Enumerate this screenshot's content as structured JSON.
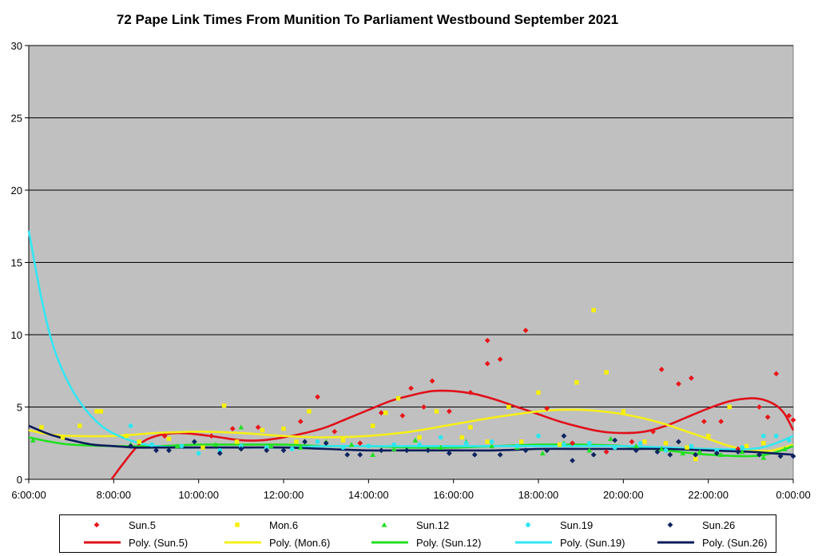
{
  "chart_data": {
    "type": "scatter",
    "title": "72 Pape Link Times From Munition To Parliament Westbound September 2021",
    "xlabel": "",
    "ylabel": "",
    "x_ticks": [
      "6:00:00",
      "8:00:00",
      "10:00:00",
      "12:00:00",
      "14:00:00",
      "16:00:00",
      "18:00:00",
      "20:00:00",
      "22:00:00",
      "0:00:00"
    ],
    "y_ticks": [
      "0",
      "5",
      "10",
      "15",
      "20",
      "25",
      "30"
    ],
    "xlim": [
      6,
      24
    ],
    "ylim": [
      0,
      30
    ],
    "grid": "horizontal",
    "legend": "bottom",
    "plot_background": "#c0c0c0",
    "series": [
      {
        "name": "Sun.5",
        "marker": "diamond",
        "color": "#e8161b",
        "x": [
          9.2,
          10.3,
          10.8,
          11.4,
          12.4,
          12.8,
          13.2,
          13.8,
          14.3,
          14.8,
          15.0,
          15.3,
          15.5,
          15.9,
          16.4,
          16.8,
          16.8,
          17.1,
          17.7,
          18.2,
          18.8,
          19.6,
          20.2,
          20.7,
          20.9,
          21.3,
          21.6,
          21.9,
          22.3,
          22.7,
          23.2,
          23.4,
          23.6,
          23.9,
          24.0
        ],
        "y": [
          3.0,
          3.0,
          3.5,
          3.6,
          4.0,
          5.7,
          3.3,
          2.5,
          4.6,
          4.4,
          6.3,
          5.0,
          6.8,
          4.7,
          6.0,
          9.6,
          8.0,
          8.3,
          10.3,
          4.9,
          2.5,
          1.9,
          2.6,
          3.3,
          7.6,
          6.6,
          7.0,
          4.0,
          4.0,
          2.1,
          5.0,
          4.3,
          7.3,
          4.4,
          4.1
        ]
      },
      {
        "name": "Mon.6",
        "marker": "square",
        "color": "#f6f000",
        "x": [
          6.3,
          6.8,
          7.2,
          7.6,
          7.7,
          8.3,
          8.6,
          9.3,
          10.1,
          10.6,
          10.9,
          11.5,
          12.0,
          12.3,
          12.6,
          13.4,
          14.1,
          14.4,
          14.7,
          15.2,
          15.6,
          16.2,
          16.4,
          16.8,
          17.3,
          17.6,
          18.0,
          18.5,
          18.9,
          19.3,
          19.6,
          20.0,
          20.5,
          21.0,
          21.5,
          21.7,
          22.0,
          22.5,
          22.9,
          23.3
        ],
        "y": [
          3.6,
          2.9,
          3.7,
          4.7,
          4.7,
          3.0,
          2.6,
          2.8,
          2.2,
          5.1,
          2.6,
          3.4,
          3.5,
          2.6,
          4.7,
          2.7,
          3.7,
          4.6,
          5.6,
          2.9,
          4.7,
          2.9,
          3.6,
          2.6,
          5.0,
          2.6,
          6.0,
          2.4,
          6.7,
          11.7,
          7.4,
          4.7,
          2.6,
          2.5,
          2.2,
          1.4,
          3.0,
          5.0,
          2.3,
          2.5
        ]
      },
      {
        "name": "Sun.12",
        "marker": "triangle",
        "color": "#22e022",
        "x": [
          6.1,
          8.4,
          9.5,
          10.4,
          11.0,
          11.7,
          12.4,
          13.0,
          13.6,
          14.1,
          14.6,
          15.1,
          15.7,
          16.3,
          16.9,
          17.5,
          18.1,
          18.6,
          19.2,
          19.7,
          20.3,
          20.9,
          21.4,
          21.8,
          22.3,
          22.8,
          23.3,
          23.8
        ],
        "y": [
          2.7,
          2.4,
          2.3,
          2.4,
          3.6,
          2.3,
          2.2,
          2.6,
          2.4,
          1.7,
          2.1,
          2.7,
          2.2,
          2.6,
          2.3,
          2.2,
          1.8,
          2.5,
          2.0,
          2.8,
          2.3,
          2.1,
          1.8,
          1.9,
          1.7,
          1.9,
          1.5,
          2.1
        ]
      },
      {
        "name": "Sun.19",
        "marker": "circle",
        "color": "#2ee6ee",
        "x": [
          8.4,
          8.9,
          9.6,
          10.0,
          10.5,
          11.0,
          11.6,
          12.2,
          12.8,
          13.4,
          14.0,
          14.6,
          15.2,
          15.7,
          16.3,
          16.9,
          17.5,
          18.0,
          18.6,
          19.2,
          19.8,
          20.4,
          21.0,
          21.6,
          22.2,
          22.8,
          23.3,
          23.6,
          23.9
        ],
        "y": [
          3.7,
          2.4,
          2.3,
          1.8,
          2.0,
          2.3,
          2.2,
          2.1,
          2.6,
          2.2,
          2.3,
          2.4,
          2.4,
          2.9,
          2.5,
          2.6,
          2.3,
          3.0,
          2.4,
          2.5,
          2.2,
          2.5,
          2.0,
          2.3,
          2.0,
          2.2,
          3.0,
          3.0,
          2.7
        ]
      },
      {
        "name": "Sun.26",
        "marker": "diamond",
        "color": "#0e2460",
        "x": [
          8.4,
          9.0,
          9.3,
          9.9,
          10.5,
          11.0,
          11.6,
          12.0,
          12.5,
          13.0,
          13.5,
          13.8,
          14.3,
          14.9,
          15.4,
          15.9,
          16.5,
          17.1,
          17.7,
          18.2,
          18.6,
          18.8,
          19.3,
          19.8,
          20.3,
          20.8,
          21.1,
          21.3,
          21.7,
          22.2,
          22.7,
          23.2,
          23.7,
          24.0
        ],
        "y": [
          2.3,
          2.0,
          2.0,
          2.6,
          1.8,
          2.1,
          2.0,
          2.0,
          2.6,
          2.5,
          1.7,
          1.7,
          2.0,
          2.0,
          2.0,
          1.8,
          1.7,
          1.7,
          2.0,
          2.0,
          3.0,
          1.3,
          1.7,
          2.7,
          2.0,
          1.9,
          1.7,
          2.6,
          1.7,
          1.8,
          1.9,
          1.7,
          1.6,
          1.6
        ]
      }
    ],
    "trendlines": [
      {
        "name": "Poly. (Sun.5)",
        "color": "#e0101a",
        "x": [
          7.95,
          8.2,
          8.6,
          9.0,
          9.5,
          10.0,
          10.5,
          11.0,
          11.5,
          12.0,
          12.5,
          13.0,
          13.5,
          14.0,
          14.5,
          15.0,
          15.5,
          16.0,
          16.5,
          17.0,
          17.5,
          18.0,
          18.5,
          19.0,
          19.5,
          20.0,
          20.5,
          21.0,
          21.5,
          22.0,
          22.5,
          23.0,
          23.3,
          23.6,
          23.8,
          24.0
        ],
        "y": [
          0.0,
          1.0,
          2.4,
          3.0,
          3.2,
          3.1,
          2.9,
          2.7,
          2.7,
          2.9,
          3.2,
          3.6,
          4.2,
          4.8,
          5.4,
          5.8,
          6.1,
          6.1,
          5.9,
          5.5,
          5.0,
          4.5,
          4.0,
          3.6,
          3.3,
          3.2,
          3.3,
          3.7,
          4.3,
          4.9,
          5.4,
          5.6,
          5.5,
          5.1,
          4.5,
          3.4
        ]
      },
      {
        "name": "Poly. (Mon.6)",
        "color": "#f5ef1a",
        "x": [
          6.0,
          6.5,
          7.0,
          8.0,
          9.0,
          10.0,
          11.0,
          12.0,
          13.0,
          14.0,
          15.0,
          16.0,
          17.0,
          18.0,
          18.5,
          19.0,
          19.5,
          20.0,
          20.5,
          21.0,
          21.5,
          22.0,
          22.5,
          23.0,
          23.5,
          24.0
        ],
        "y": [
          3.4,
          3.1,
          3.0,
          3.0,
          3.2,
          3.3,
          3.2,
          3.0,
          2.9,
          3.0,
          3.3,
          3.8,
          4.3,
          4.7,
          4.8,
          4.8,
          4.7,
          4.5,
          4.2,
          3.8,
          3.3,
          2.8,
          2.3,
          2.0,
          2.0,
          2.4
        ]
      },
      {
        "name": "Poly. (Sun.12)",
        "color": "#20e020",
        "x": [
          6.0,
          6.5,
          7.0,
          8.0,
          9.0,
          10.0,
          11.0,
          12.0,
          13.0,
          14.0,
          15.0,
          16.0,
          17.0,
          18.0,
          19.0,
          20.0,
          21.0,
          22.0,
          23.0,
          23.5,
          24.0
        ],
        "y": [
          2.9,
          2.6,
          2.4,
          2.3,
          2.3,
          2.4,
          2.4,
          2.4,
          2.3,
          2.3,
          2.2,
          2.2,
          2.3,
          2.4,
          2.4,
          2.3,
          2.0,
          1.7,
          1.6,
          1.8,
          2.3
        ]
      },
      {
        "name": "Poly. (Sun.19)",
        "color": "#33e6f2",
        "x": [
          6.0,
          6.3,
          6.6,
          7.0,
          7.4,
          7.8,
          8.2,
          8.6,
          9.0,
          9.5,
          10.0,
          11.0,
          12.0,
          13.0,
          14.0,
          15.0,
          16.0,
          17.0,
          18.0,
          19.0,
          20.0,
          21.0,
          22.0,
          23.0,
          23.5,
          24.0
        ],
        "y": [
          17.2,
          12.5,
          9.0,
          6.3,
          4.6,
          3.5,
          2.9,
          2.5,
          2.3,
          2.2,
          2.2,
          2.2,
          2.2,
          2.3,
          2.3,
          2.3,
          2.3,
          2.3,
          2.3,
          2.3,
          2.3,
          2.2,
          2.1,
          2.1,
          2.4,
          3.0
        ]
      },
      {
        "name": "Poly. (Sun.26)",
        "color": "#0c1c5a",
        "x": [
          6.0,
          6.5,
          7.0,
          7.5,
          8.0,
          8.5,
          9.0,
          10.0,
          11.0,
          12.0,
          13.0,
          14.0,
          15.0,
          16.0,
          17.0,
          18.0,
          19.0,
          20.0,
          21.0,
          22.0,
          23.0,
          23.5,
          24.0
        ],
        "y": [
          3.7,
          3.1,
          2.7,
          2.4,
          2.3,
          2.2,
          2.2,
          2.2,
          2.2,
          2.2,
          2.1,
          2.0,
          2.0,
          2.0,
          2.0,
          2.1,
          2.1,
          2.1,
          2.1,
          2.0,
          1.9,
          1.8,
          1.7
        ]
      }
    ]
  }
}
